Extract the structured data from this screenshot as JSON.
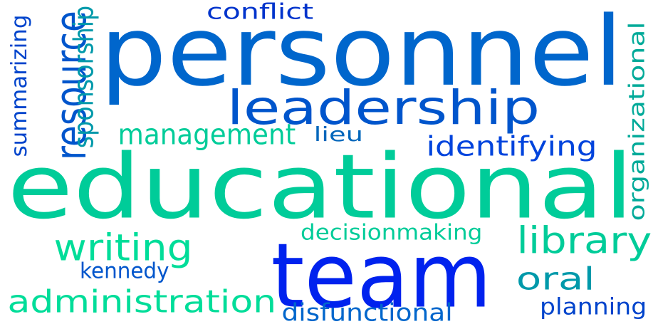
{
  "words": [
    {
      "text": "personnel",
      "color": "#0066cc",
      "vertical": false
    },
    {
      "text": "educational",
      "color": "#00cc99",
      "vertical": false
    },
    {
      "text": "team",
      "color": "#0022ee",
      "vertical": false
    },
    {
      "text": "leadership",
      "color": "#0055cc",
      "vertical": false
    },
    {
      "text": "management",
      "color": "#00cc99",
      "vertical": false
    },
    {
      "text": "resource",
      "color": "#0055cc",
      "vertical": true
    },
    {
      "text": "writing",
      "color": "#00dd99",
      "vertical": false
    },
    {
      "text": "library",
      "color": "#00cc99",
      "vertical": false
    },
    {
      "text": "administration",
      "color": "#00dd99",
      "vertical": false
    },
    {
      "text": "oral",
      "color": "#0099aa",
      "vertical": false
    },
    {
      "text": "identifying",
      "color": "#0044dd",
      "vertical": false
    },
    {
      "text": "conflict",
      "color": "#0033cc",
      "vertical": false
    },
    {
      "text": "sponsorship",
      "color": "#0099aa",
      "vertical": true
    },
    {
      "text": "summarizing",
      "color": "#0044cc",
      "vertical": true
    },
    {
      "text": "organizational",
      "color": "#00aa99",
      "vertical": true
    },
    {
      "text": "lieu",
      "color": "#0066bb",
      "vertical": false
    },
    {
      "text": "decisionmaking",
      "color": "#00cc99",
      "vertical": false
    },
    {
      "text": "kennedy",
      "color": "#0055cc",
      "vertical": false
    },
    {
      "text": "disfunctional",
      "color": "#0066cc",
      "vertical": false
    },
    {
      "text": "planning",
      "color": "#0044cc",
      "vertical": false
    }
  ]
}
